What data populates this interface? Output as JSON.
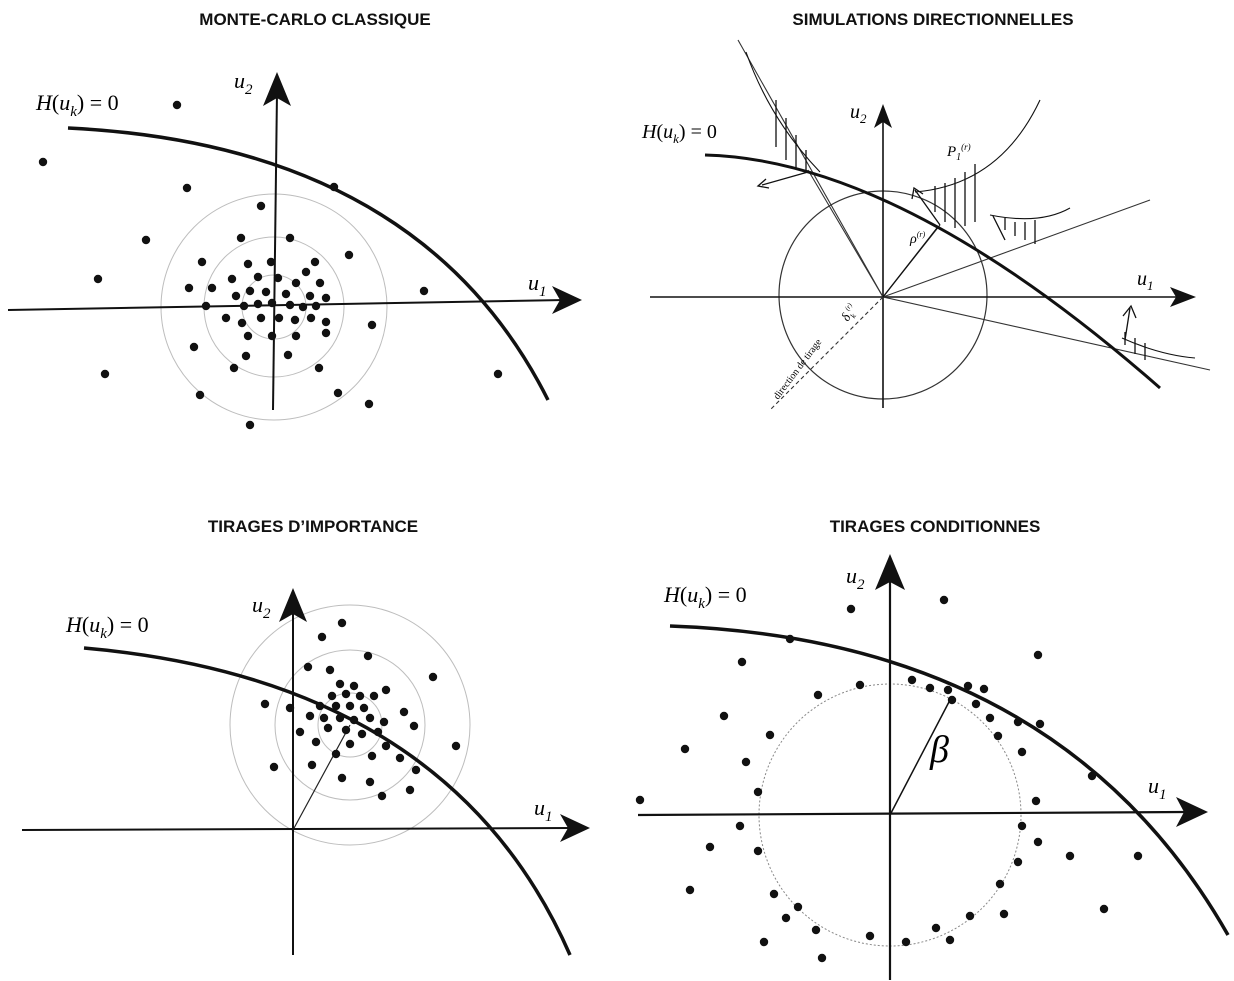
{
  "panels": {
    "mc": {
      "title": "MONTE-CARLO CLASSIQUE",
      "limit_state": "H(u_k) = 0",
      "axis_u1": "u_1",
      "axis_u2": "u_2"
    },
    "ds": {
      "title": "SIMULATIONS DIRECTIONNELLES",
      "limit_state": "H(u_k) = 0",
      "axis_u1": "u_1",
      "axis_u2": "u_2",
      "label_p": "P_1^(r)",
      "label_rho": "ρ^(r)",
      "label_delta": "δ_k^(r)",
      "label_direction": "direction de tirage"
    },
    "is": {
      "title": "TIRAGES D’IMPORTANCE",
      "limit_state": "H(u_k) = 0",
      "axis_u1": "u_1",
      "axis_u2": "u_2"
    },
    "cs": {
      "title": "TIRAGES CONDITIONNES",
      "limit_state": "H(u_k) = 0",
      "axis_u1": "u_1",
      "axis_u2": "u_2",
      "label_beta": "β"
    }
  },
  "colors": {
    "ink": "#111111",
    "rings": "#bdbdbd",
    "circle": "#888888"
  }
}
